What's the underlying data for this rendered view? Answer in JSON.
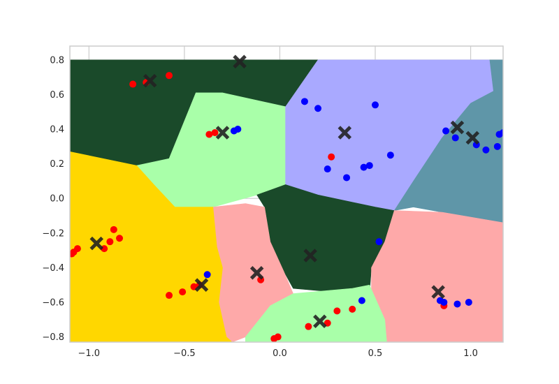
{
  "chart_data": {
    "type": "scatter",
    "title": "",
    "xlabel": "",
    "ylabel": "",
    "xlim": [
      -1.1,
      1.17
    ],
    "ylim": [
      -0.83,
      0.88
    ],
    "x_ticks": [
      -1.0,
      -0.5,
      0.0,
      0.5,
      1.0
    ],
    "x_tick_labels": [
      "−1.0",
      "−0.5",
      "0.0",
      "0.5",
      "1.0"
    ],
    "y_ticks": [
      -0.8,
      -0.6,
      -0.4,
      -0.2,
      0.0,
      0.2,
      0.4,
      0.6,
      0.8
    ],
    "y_tick_labels": [
      "−0.8",
      "−0.6",
      "−0.4",
      "−0.2",
      "0.0",
      "0.2",
      "0.4",
      "0.6",
      "0.8"
    ],
    "grid": true,
    "regions": [
      {
        "color": "#1a4a2a",
        "polygon": [
          [
            -1.1,
            0.8
          ],
          [
            0.2,
            0.8
          ],
          [
            0.03,
            0.53
          ],
          [
            -0.44,
            0.61
          ],
          [
            -0.58,
            0.23
          ],
          [
            -0.75,
            0.19
          ],
          [
            -1.1,
            0.27
          ]
        ]
      },
      {
        "color": "#a9ffa9",
        "polygon": [
          [
            -0.44,
            0.61
          ],
          [
            -0.3,
            0.61
          ],
          [
            0.03,
            0.53
          ],
          [
            0.03,
            0.08
          ],
          [
            -0.12,
            0.02
          ],
          [
            -0.35,
            -0.05
          ],
          [
            -0.55,
            -0.05
          ],
          [
            -0.66,
            0.08
          ],
          [
            -0.75,
            0.19
          ],
          [
            -0.58,
            0.23
          ]
        ]
      },
      {
        "color": "#a9a9ff",
        "polygon": [
          [
            0.2,
            0.8
          ],
          [
            1.1,
            0.8
          ],
          [
            1.12,
            0.62
          ],
          [
            1.0,
            0.55
          ],
          [
            0.85,
            0.35
          ],
          [
            0.7,
            0.1
          ],
          [
            0.6,
            -0.07
          ],
          [
            0.5,
            -0.05
          ],
          [
            0.2,
            0.02
          ],
          [
            0.03,
            0.08
          ],
          [
            0.03,
            0.53
          ]
        ]
      },
      {
        "color": "#5f96a8",
        "polygon": [
          [
            1.1,
            0.8
          ],
          [
            1.17,
            0.8
          ],
          [
            1.17,
            -0.14
          ],
          [
            0.85,
            -0.08
          ],
          [
            0.7,
            -0.05
          ],
          [
            0.6,
            -0.07
          ],
          [
            0.7,
            0.1
          ],
          [
            0.85,
            0.35
          ],
          [
            1.0,
            0.55
          ],
          [
            1.12,
            0.62
          ]
        ]
      },
      {
        "color": "#1a4a2a",
        "polygon": [
          [
            -0.12,
            0.02
          ],
          [
            0.03,
            0.08
          ],
          [
            0.2,
            0.02
          ],
          [
            0.5,
            -0.05
          ],
          [
            0.6,
            -0.07
          ],
          [
            0.55,
            -0.25
          ],
          [
            0.48,
            -0.4
          ],
          [
            0.47,
            -0.55
          ],
          [
            0.38,
            -0.55
          ],
          [
            0.07,
            -0.52
          ],
          [
            0.02,
            -0.42
          ],
          [
            -0.05,
            -0.25
          ],
          [
            -0.08,
            -0.05
          ]
        ]
      },
      {
        "color": "#fea9a9",
        "polygon": [
          [
            -0.35,
            -0.05
          ],
          [
            -0.18,
            -0.03
          ],
          [
            -0.08,
            -0.05
          ],
          [
            -0.05,
            -0.25
          ],
          [
            0.02,
            -0.42
          ],
          [
            0.07,
            -0.55
          ],
          [
            -0.05,
            -0.62
          ],
          [
            -0.18,
            -0.8
          ],
          [
            -0.25,
            -0.83
          ],
          [
            -0.28,
            -0.8
          ],
          [
            -0.32,
            -0.6
          ],
          [
            -0.3,
            -0.4
          ],
          [
            -0.33,
            -0.28
          ]
        ]
      },
      {
        "color": "#fea9a9",
        "polygon": [
          [
            0.6,
            -0.07
          ],
          [
            0.85,
            -0.08
          ],
          [
            1.17,
            -0.14
          ],
          [
            1.17,
            -0.83
          ],
          [
            0.56,
            -0.83
          ],
          [
            0.55,
            -0.7
          ],
          [
            0.48,
            -0.55
          ],
          [
            0.48,
            -0.4
          ],
          [
            0.55,
            -0.25
          ]
        ]
      },
      {
        "color": "#a9ffa9",
        "polygon": [
          [
            0.07,
            -0.55
          ],
          [
            0.38,
            -0.52
          ],
          [
            0.47,
            -0.5
          ],
          [
            0.55,
            -0.7
          ],
          [
            0.56,
            -0.83
          ],
          [
            -0.18,
            -0.83
          ],
          [
            -0.18,
            -0.8
          ],
          [
            -0.05,
            -0.62
          ]
        ]
      },
      {
        "color": "#ffd700",
        "polygon": [
          [
            -1.1,
            0.27
          ],
          [
            -0.75,
            0.19
          ],
          [
            -0.66,
            0.08
          ],
          [
            -0.55,
            -0.05
          ],
          [
            -0.35,
            -0.05
          ],
          [
            -0.33,
            -0.28
          ],
          [
            -0.3,
            -0.4
          ],
          [
            -0.32,
            -0.6
          ],
          [
            -0.28,
            -0.8
          ],
          [
            -0.25,
            -0.83
          ],
          [
            -1.1,
            -0.83
          ]
        ]
      }
    ],
    "series": [
      {
        "color": "#ff0000",
        "points": [
          [
            -0.77,
            0.66
          ],
          [
            -0.7,
            0.67
          ],
          [
            -0.58,
            0.71
          ],
          [
            -0.37,
            0.37
          ],
          [
            -0.34,
            0.38
          ],
          [
            -1.09,
            -0.32
          ],
          [
            -1.08,
            -0.31
          ],
          [
            -1.06,
            -0.29
          ],
          [
            -0.92,
            -0.29
          ],
          [
            -0.89,
            -0.25
          ],
          [
            -0.87,
            -0.18
          ],
          [
            -0.84,
            -0.23
          ],
          [
            -0.58,
            -0.56
          ],
          [
            -0.51,
            -0.54
          ],
          [
            -0.45,
            -0.51
          ],
          [
            -0.42,
            -0.5
          ],
          [
            -0.1,
            -0.47
          ],
          [
            -0.03,
            -0.81
          ],
          [
            -0.01,
            -0.8
          ],
          [
            0.15,
            -0.74
          ],
          [
            0.25,
            -0.72
          ],
          [
            0.3,
            -0.65
          ],
          [
            0.38,
            -0.64
          ],
          [
            0.27,
            0.24
          ],
          [
            0.86,
            -0.62
          ]
        ]
      },
      {
        "color": "#0000ff",
        "points": [
          [
            -0.24,
            0.39
          ],
          [
            -0.22,
            0.4
          ],
          [
            0.13,
            0.56
          ],
          [
            0.2,
            0.52
          ],
          [
            0.5,
            0.54
          ],
          [
            0.25,
            0.17
          ],
          [
            0.35,
            0.12
          ],
          [
            0.44,
            0.18
          ],
          [
            0.47,
            0.19
          ],
          [
            0.58,
            0.25
          ],
          [
            0.87,
            0.39
          ],
          [
            0.92,
            0.35
          ],
          [
            1.03,
            0.31
          ],
          [
            1.08,
            0.28
          ],
          [
            1.14,
            0.3
          ],
          [
            1.15,
            0.37
          ],
          [
            1.17,
            0.38
          ],
          [
            -0.38,
            -0.44
          ],
          [
            0.43,
            -0.59
          ],
          [
            0.52,
            -0.25
          ],
          [
            0.84,
            -0.59
          ],
          [
            0.86,
            -0.6
          ],
          [
            0.93,
            -0.61
          ],
          [
            0.99,
            -0.6
          ]
        ]
      }
    ],
    "centroids": [
      [
        -0.68,
        0.68
      ],
      [
        -0.21,
        0.79
      ],
      [
        -0.3,
        0.38
      ],
      [
        0.34,
        0.38
      ],
      [
        0.93,
        0.41
      ],
      [
        1.01,
        0.35
      ],
      [
        -0.96,
        -0.26
      ],
      [
        -0.41,
        -0.5
      ],
      [
        -0.12,
        -0.43
      ],
      [
        0.16,
        -0.33
      ],
      [
        0.21,
        -0.71
      ],
      [
        0.83,
        -0.54
      ]
    ],
    "centroid_color": "#222222",
    "background_color": "#ffffff",
    "grid_color": "#cccccc"
  }
}
